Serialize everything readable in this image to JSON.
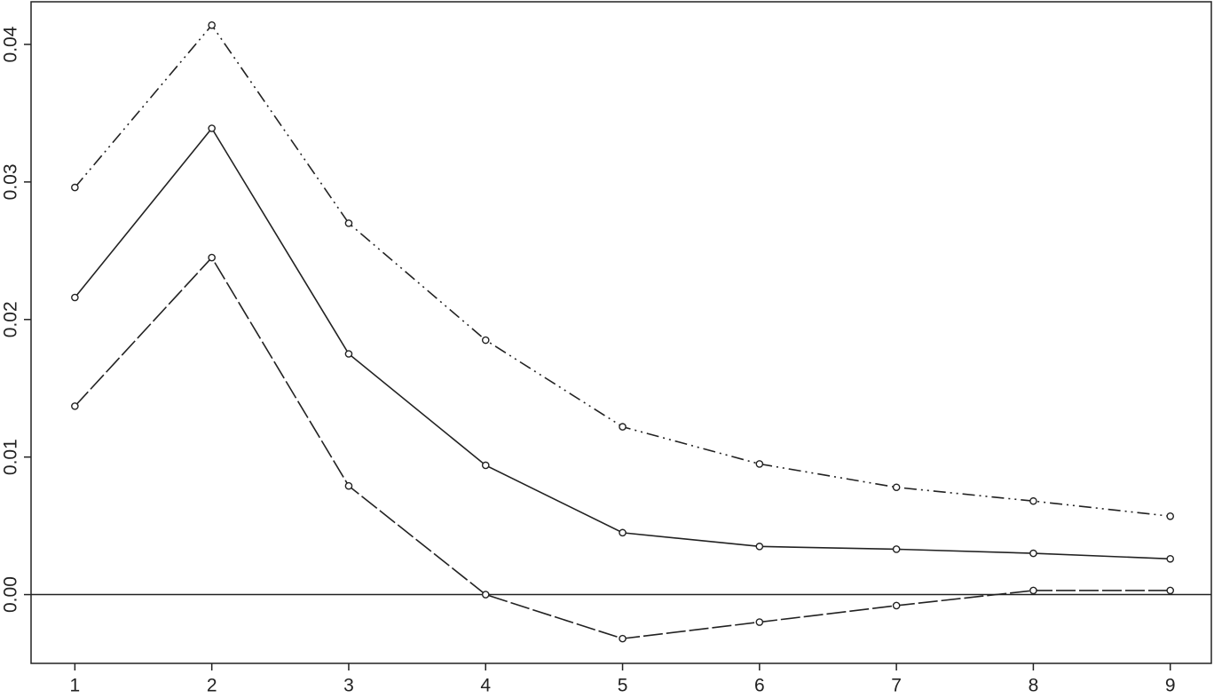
{
  "chart_data": {
    "type": "line",
    "x": [
      1,
      2,
      3,
      4,
      5,
      6,
      7,
      8,
      9
    ],
    "series": [
      {
        "color": "#222222",
        "linestyle": "dashdot",
        "values": [
          0.0296,
          0.0414,
          0.027,
          0.0185,
          0.0122,
          0.0095,
          0.0078,
          0.0068,
          0.0057
        ]
      },
      {
        "color": "#222222",
        "linestyle": "solid",
        "values": [
          0.0216,
          0.0339,
          0.0175,
          0.0094,
          0.0045,
          0.0035,
          0.0033,
          0.003,
          0.0026
        ]
      },
      {
        "color": "#222222",
        "linestyle": "longdash",
        "values": [
          0.0137,
          0.0245,
          0.0079,
          0.0,
          -0.0032,
          -0.002,
          -0.0008,
          0.0003,
          0.0003
        ]
      }
    ],
    "xlim": [
      0.68,
      9.3
    ],
    "xticks": [
      1,
      2,
      3,
      4,
      5,
      6,
      7,
      8,
      9
    ],
    "ylim": [
      -0.005,
      0.0431
    ],
    "yticks": [
      {
        "value": 0,
        "label": "0.00"
      },
      0.01,
      0.02,
      0.03,
      0.04
    ],
    "hlines": [
      0
    ],
    "grid": false
  }
}
